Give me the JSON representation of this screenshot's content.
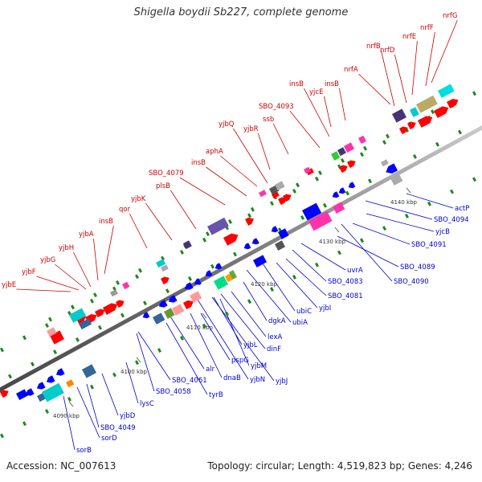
{
  "title": "Shigella boydii Sb227, complete genome",
  "footer": {
    "accession": "Accession: NC_007613",
    "summary": "Topology: circular; Length: 4,519,823 bp; Genes: 4,246"
  },
  "colors": {
    "background": "#ffffff",
    "backbone": "#888888",
    "forward_label": "#cc0000",
    "reverse_label": "#0000cc",
    "forward_gene": "#ff0000",
    "reverse_gene": "#0000ff",
    "tick_dot": "#1a8a1a"
  },
  "ticks": [
    "4090 kbp",
    "4100 kbp",
    "4110 kbp",
    "4120 kbp",
    "4130 kbp",
    "4140 kbp"
  ],
  "labels_upper": [
    "yjbE",
    "yjbF",
    "yjbG",
    "yjbH",
    "yjbA",
    "insB",
    "qor",
    "yjbK",
    "plsB",
    "SBO_4079",
    "insB",
    "aphA",
    "yjbR",
    "yjbQ",
    "ssb",
    "SBO_4093",
    "insB",
    "yjcE",
    "insB",
    "nrfA",
    "nrfB",
    "nrfD",
    "nrfE",
    "nrfF",
    "nrfG"
  ],
  "labels_lower": [
    "actP",
    "SBO_4094",
    "yjcB",
    "SBO_4091",
    "SBO_4089",
    "SBO_4090",
    "uvrA",
    "SBO_4083",
    "SBO_4081",
    "yjbI",
    "ubiC",
    "ubiA",
    "dgkA",
    "lexA",
    "dinF",
    "yjbL",
    "yjbM",
    "yjbJ",
    "yjbN",
    "pspG",
    "dnaB",
    "alr",
    "tyrB",
    "SBO_4061",
    "SBO_4058",
    "lysC",
    "yjbD",
    "SBO_4049",
    "sorD",
    "sorB"
  ]
}
